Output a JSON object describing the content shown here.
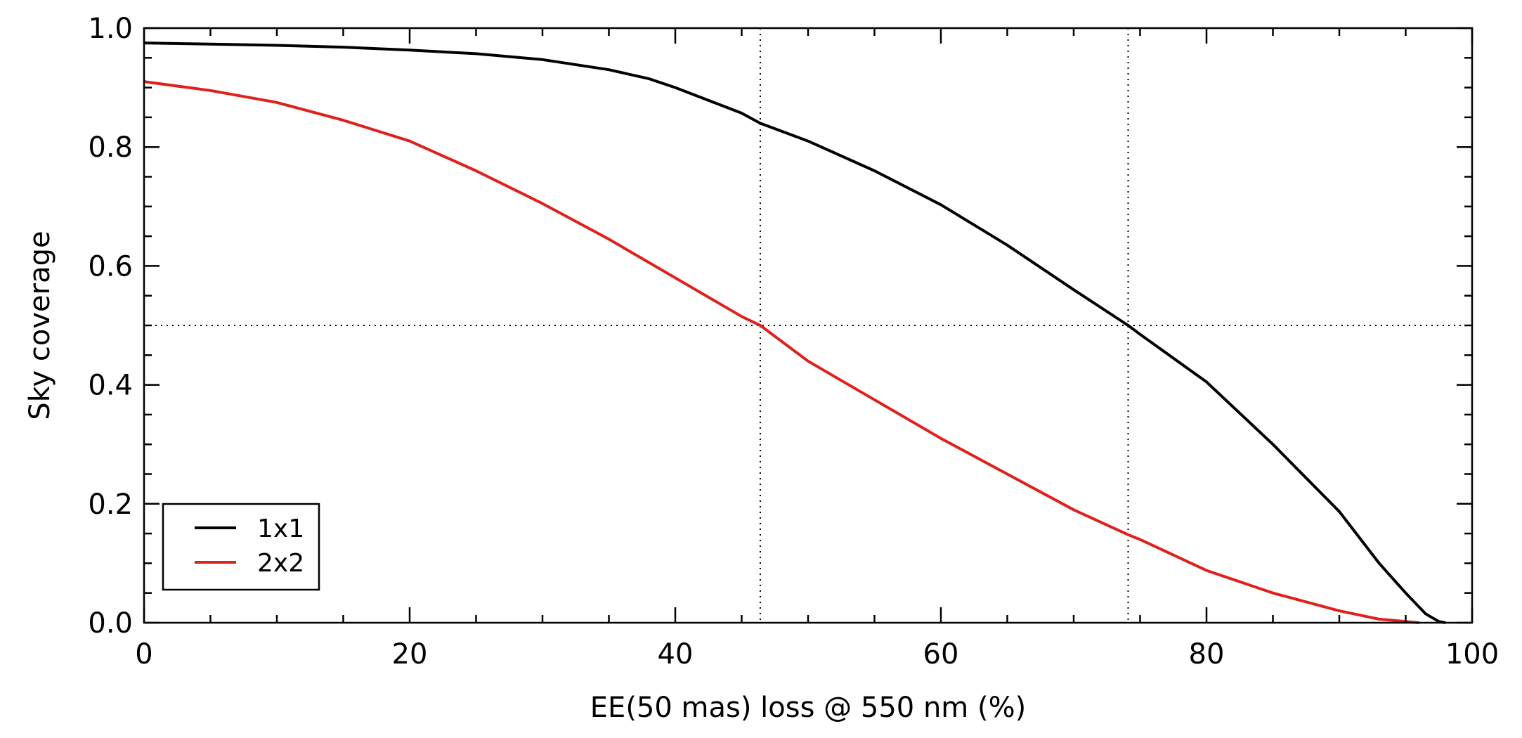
{
  "chart_data": {
    "type": "line",
    "title": "",
    "xlabel": "EE(50 mas) loss @ 550 nm (%)",
    "ylabel": "Sky coverage",
    "xlim": [
      0,
      100
    ],
    "ylim": [
      0.0,
      1.0
    ],
    "x_ticks": [
      0,
      20,
      40,
      60,
      80,
      100
    ],
    "x_tick_labels": [
      "0",
      "20",
      "40",
      "60",
      "80",
      "100"
    ],
    "y_ticks": [
      0.0,
      0.2,
      0.4,
      0.6,
      0.8,
      1.0
    ],
    "y_tick_labels": [
      "0.0",
      "0.2",
      "0.4",
      "0.6",
      "0.8",
      "1.0"
    ],
    "grid": false,
    "legend_position": "bottom-left",
    "reference_lines": {
      "horizontal_y": [
        0.5
      ],
      "vertical_x": [
        46.4,
        74.1
      ]
    },
    "series": [
      {
        "name": "1x1",
        "color": "#000000",
        "x": [
          0,
          5,
          10,
          15,
          20,
          25,
          30,
          35,
          38,
          40,
          45,
          46.4,
          50,
          55,
          60,
          65,
          70,
          74.1,
          75,
          80,
          85,
          90,
          93,
          95,
          96.5,
          97.5,
          98
        ],
        "y": [
          0.975,
          0.973,
          0.971,
          0.968,
          0.963,
          0.957,
          0.947,
          0.93,
          0.915,
          0.9,
          0.857,
          0.84,
          0.81,
          0.76,
          0.703,
          0.635,
          0.56,
          0.5,
          0.485,
          0.405,
          0.3,
          0.187,
          0.1,
          0.05,
          0.015,
          0.002,
          0.0
        ]
      },
      {
        "name": "2x2",
        "color": "#e0201c",
        "x": [
          0,
          5,
          10,
          15,
          20,
          25,
          30,
          35,
          40,
          45,
          46.4,
          50,
          55,
          60,
          65,
          70,
          74.1,
          75,
          80,
          85,
          90,
          93,
          95,
          96
        ],
        "y": [
          0.91,
          0.895,
          0.875,
          0.845,
          0.81,
          0.76,
          0.705,
          0.645,
          0.58,
          0.515,
          0.5,
          0.44,
          0.375,
          0.31,
          0.25,
          0.19,
          0.148,
          0.14,
          0.088,
          0.05,
          0.02,
          0.006,
          0.002,
          0.0
        ]
      }
    ]
  }
}
